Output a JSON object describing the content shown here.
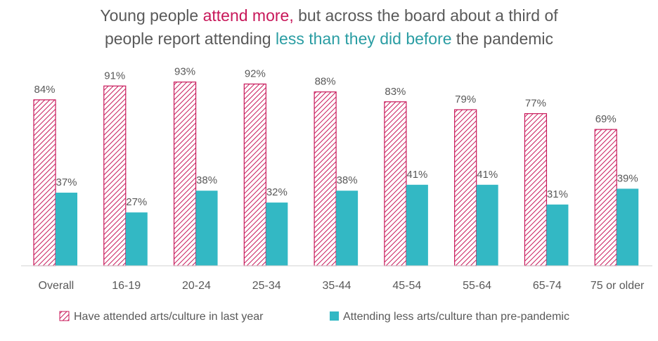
{
  "title": {
    "line1_pre": "Young people ",
    "line1_hl": "attend more,",
    "line1_post": " but across the board about a third of",
    "line2_pre": "people report attending ",
    "line2_hl": "less than they did before",
    "line2_post": " the pandemic"
  },
  "colors": {
    "series1": "#c8185a",
    "series2": "#33b8c4",
    "title_highlight_1": "#c8185a",
    "title_highlight_2": "#2a9da3",
    "text": "#595959"
  },
  "chart_data": {
    "type": "bar",
    "categories": [
      "Overall",
      "16-19",
      "20-24",
      "25-34",
      "35-44",
      "45-54",
      "55-64",
      "65-74",
      "75 or older"
    ],
    "series": [
      {
        "name": "Have attended arts/culture in last year",
        "values": [
          84,
          91,
          93,
          92,
          88,
          83,
          79,
          77,
          69
        ],
        "labels": [
          "84%",
          "91%",
          "93%",
          "92%",
          "88%",
          "83%",
          "79%",
          "77%",
          "69%"
        ],
        "fill": "hatched"
      },
      {
        "name": "Attending less arts/culture than pre-pandemic",
        "values": [
          37,
          27,
          38,
          32,
          38,
          41,
          41,
          31,
          39
        ],
        "labels": [
          "37%",
          "27%",
          "38%",
          "32%",
          "38%",
          "41%",
          "41%",
          "31%",
          "39%"
        ],
        "fill": "solid"
      }
    ],
    "ylim": [
      0,
      100
    ],
    "grid": false,
    "legend_position": "bottom"
  }
}
